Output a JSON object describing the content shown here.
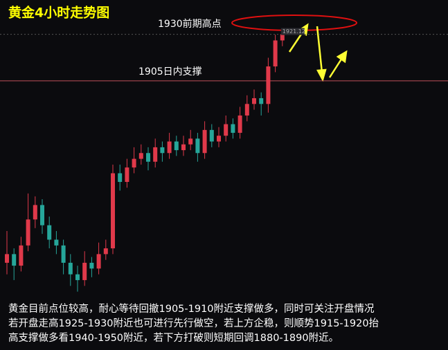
{
  "chart_data": {
    "type": "candlestick",
    "title": "黄金4小时走势图",
    "open": [
      1842,
      1845,
      1841,
      1848,
      1857,
      1862,
      1855,
      1850,
      1848,
      1842,
      1838,
      1836,
      1842,
      1840,
      1845,
      1847,
      1873,
      1870,
      1875,
      1878,
      1880,
      1877,
      1882,
      1880,
      1884,
      1881,
      1883,
      1885,
      1880,
      1888,
      1884,
      1886,
      1890,
      1887,
      1893,
      1897,
      1899,
      1897,
      1910,
      1919
    ],
    "high": [
      1853,
      1847,
      1851,
      1866,
      1865,
      1864,
      1858,
      1853,
      1850,
      1845,
      1841,
      1846,
      1844,
      1849,
      1850,
      1876,
      1876,
      1878,
      1882,
      1883,
      1882,
      1885,
      1884,
      1887,
      1886,
      1886,
      1888,
      1887,
      1891,
      1890,
      1889,
      1893,
      1892,
      1896,
      1900,
      1902,
      1901,
      1913,
      1921,
      1923
    ],
    "low": [
      1838,
      1836,
      1839,
      1846,
      1854,
      1852,
      1847,
      1845,
      1838,
      1834,
      1832,
      1834,
      1837,
      1838,
      1843,
      1845,
      1867,
      1868,
      1873,
      1876,
      1874,
      1875,
      1877,
      1878,
      1879,
      1879,
      1881,
      1877,
      1878,
      1882,
      1882,
      1884,
      1885,
      1885,
      1891,
      1895,
      1893,
      1894,
      1908,
      1917
    ],
    "close": [
      1845,
      1841,
      1848,
      1857,
      1862,
      1855,
      1850,
      1848,
      1842,
      1838,
      1836,
      1842,
      1840,
      1845,
      1847,
      1873,
      1870,
      1875,
      1878,
      1880,
      1877,
      1882,
      1880,
      1884,
      1881,
      1883,
      1885,
      1880,
      1888,
      1884,
      1886,
      1890,
      1887,
      1893,
      1897,
      1899,
      1897,
      1910,
      1919,
      1921.12
    ],
    "up_color": "#e0394a",
    "down_color": "#26a69a",
    "ylim": [
      1830,
      1933
    ],
    "annotations": [
      {
        "label": "1930前期高点"
      },
      {
        "label": "1905日内支撑",
        "value": 1905
      }
    ]
  },
  "commentary": [
    "黄金目前点位较高，耐心等待回撤1905-1910附近支撑做多，同时可关注开盘情况",
    "若开盘走高1925-1930附近也可进行先行做空，若上方企稳，则顺势1915-1920抬",
    "高支撑做多看1940-1950附近，若下方打破则短期回调1880-1890附近。"
  ]
}
